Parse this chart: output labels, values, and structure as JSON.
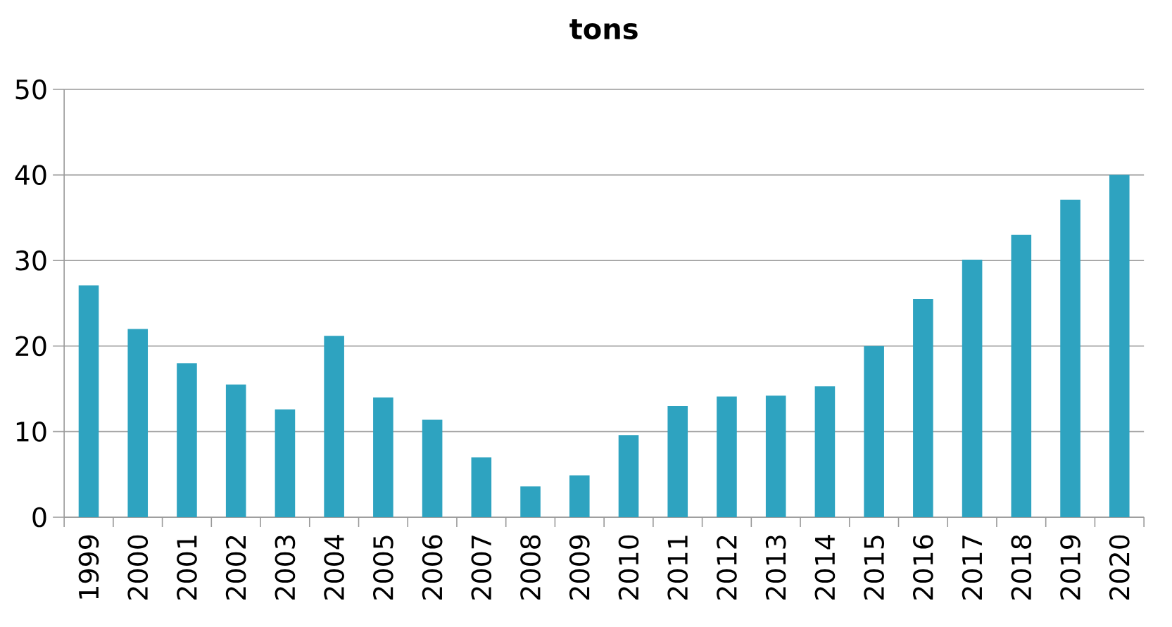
{
  "chart_data": {
    "type": "bar",
    "title": "tons",
    "categories": [
      "1999",
      "2000",
      "2001",
      "2002",
      "2003",
      "2004",
      "2005",
      "2006",
      "2007",
      "2008",
      "2009",
      "2010",
      "2011",
      "2012",
      "2013",
      "2014",
      "2015",
      "2016",
      "2017",
      "2018",
      "2019",
      "2020"
    ],
    "values": [
      27.1,
      22.0,
      18.0,
      15.5,
      12.6,
      21.2,
      14.0,
      11.4,
      7.0,
      3.6,
      4.9,
      9.6,
      13.0,
      14.1,
      14.2,
      15.3,
      20.0,
      25.5,
      30.1,
      33.0,
      37.1,
      40.0
    ],
    "color": "#2ea3c0",
    "ylim": [
      0,
      50
    ],
    "yticks": [
      0,
      10,
      20,
      30,
      40,
      50
    ],
    "grid": "y"
  }
}
